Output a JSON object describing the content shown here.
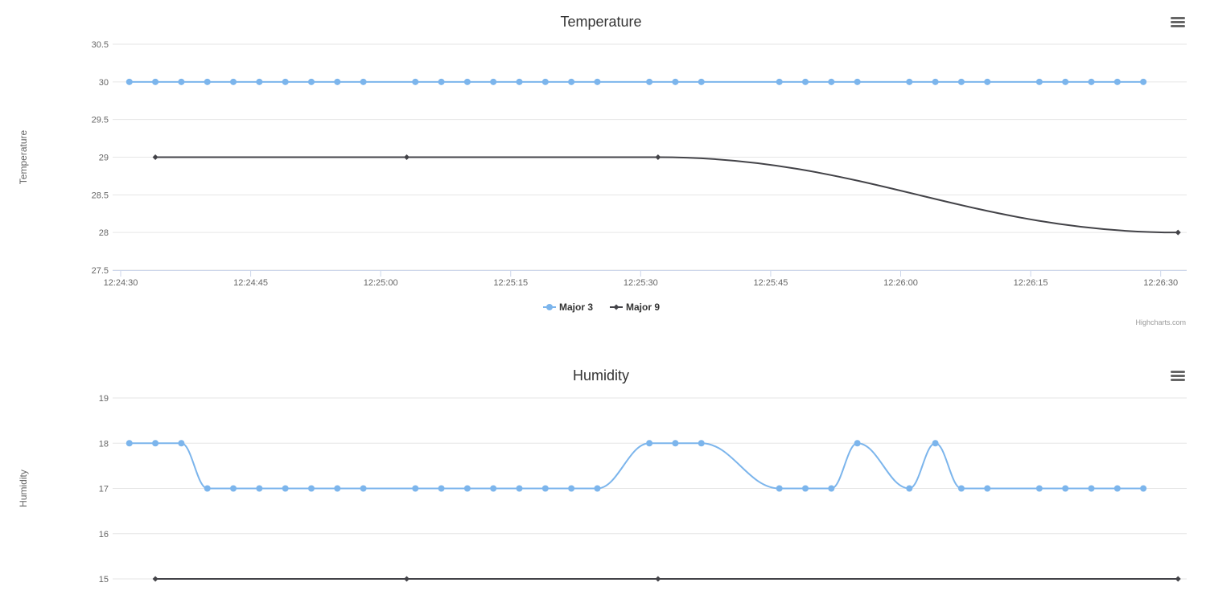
{
  "colors": {
    "series1": "#7cb5ec",
    "series2": "#434348",
    "grid": "#e6e6e6",
    "axis": "#ccd6eb"
  },
  "icons": {
    "menu": "hamburger-menu-icon"
  },
  "credits": "Highcharts.com",
  "chart_data": [
    {
      "type": "line",
      "title": "Temperature",
      "ylabel": "Temperature",
      "xlabel": "",
      "ylim": [
        27.5,
        30.5
      ],
      "yticks": [
        27.5,
        28,
        28.5,
        29,
        29.5,
        30,
        30.5
      ],
      "ytick_labels": [
        "27.5",
        "28",
        "28.5",
        "29",
        "29.5",
        "30",
        "30.5"
      ],
      "xlim": [
        "12:24:30",
        "12:26:33"
      ],
      "xticks": [
        "12:24:30",
        "12:24:45",
        "12:25:00",
        "12:25:15",
        "12:25:30",
        "12:25:45",
        "12:26:00",
        "12:26:15",
        "12:26:30"
      ],
      "grid": true,
      "legend_position": "bottom-center",
      "series": [
        {
          "name": "Major 3",
          "marker": "circle",
          "x": [
            "12:24:31",
            "12:24:34",
            "12:24:37",
            "12:24:40",
            "12:24:43",
            "12:24:46",
            "12:24:49",
            "12:24:52",
            "12:24:55",
            "12:24:58",
            "12:25:04",
            "12:25:07",
            "12:25:10",
            "12:25:13",
            "12:25:16",
            "12:25:19",
            "12:25:22",
            "12:25:25",
            "12:25:31",
            "12:25:34",
            "12:25:37",
            "12:25:46",
            "12:25:49",
            "12:25:52",
            "12:25:55",
            "12:26:01",
            "12:26:04",
            "12:26:07",
            "12:26:10",
            "12:26:16",
            "12:26:19",
            "12:26:22",
            "12:26:25",
            "12:26:28"
          ],
          "values": [
            30,
            30,
            30,
            30,
            30,
            30,
            30,
            30,
            30,
            30,
            30,
            30,
            30,
            30,
            30,
            30,
            30,
            30,
            30,
            30,
            30,
            30,
            30,
            30,
            30,
            30,
            30,
            30,
            30,
            30,
            30,
            30,
            30,
            30
          ]
        },
        {
          "name": "Major 9",
          "marker": "diamond",
          "x": [
            "12:24:34",
            "12:25:03",
            "12:25:32",
            "12:26:32"
          ],
          "values": [
            29,
            29,
            29,
            28
          ]
        }
      ]
    },
    {
      "type": "line",
      "title": "Humidity",
      "ylabel": "Humidity",
      "xlabel": "",
      "ylim": [
        15,
        19
      ],
      "yticks": [
        15,
        16,
        17,
        18,
        19
      ],
      "ytick_labels": [
        "15",
        "16",
        "17",
        "18",
        "19"
      ],
      "xlim": [
        "12:24:30",
        "12:26:33"
      ],
      "grid": true,
      "series": [
        {
          "name": "Major 3",
          "marker": "circle",
          "x": [
            "12:24:31",
            "12:24:34",
            "12:24:37",
            "12:24:40",
            "12:24:43",
            "12:24:46",
            "12:24:49",
            "12:24:52",
            "12:24:55",
            "12:24:58",
            "12:25:04",
            "12:25:07",
            "12:25:10",
            "12:25:13",
            "12:25:16",
            "12:25:19",
            "12:25:22",
            "12:25:25",
            "12:25:31",
            "12:25:34",
            "12:25:37",
            "12:25:46",
            "12:25:49",
            "12:25:52",
            "12:25:55",
            "12:26:01",
            "12:26:04",
            "12:26:07",
            "12:26:10",
            "12:26:16",
            "12:26:19",
            "12:26:22",
            "12:26:25",
            "12:26:28"
          ],
          "values": [
            18,
            18,
            18,
            17,
            17,
            17,
            17,
            17,
            17,
            17,
            17,
            17,
            17,
            17,
            17,
            17,
            17,
            17,
            18,
            18,
            18,
            17,
            17,
            17,
            18,
            17,
            18,
            17,
            17,
            17,
            17,
            17,
            17,
            17
          ]
        },
        {
          "name": "Major 9",
          "marker": "diamond",
          "x": [
            "12:24:34",
            "12:25:03",
            "12:25:32",
            "12:26:32"
          ],
          "values": [
            15,
            15,
            15,
            15
          ]
        }
      ]
    }
  ]
}
